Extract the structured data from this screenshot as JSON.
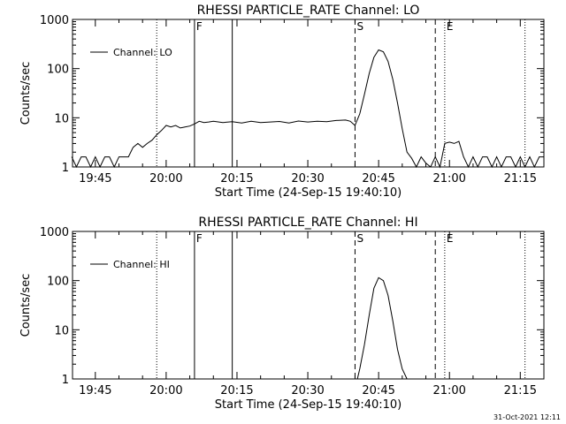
{
  "footer": {
    "timestamp": "31-Oct-2021 12:11"
  },
  "chart_data": [
    {
      "type": "line",
      "title": "RHESSI PARTICLE_RATE Channel: LO",
      "xlabel": "Start Time (24-Sep-15 19:40:10)",
      "ylabel": "Counts/sec",
      "y_scale": "log",
      "ylim": [
        1,
        1000
      ],
      "y_ticks": [
        "1",
        "10",
        "100",
        "1000"
      ],
      "xlim": [
        "19:40:10",
        "21:20:00"
      ],
      "x_ticks": [
        "19:45",
        "20:00",
        "20:15",
        "20:30",
        "20:45",
        "21:00",
        "21:15"
      ],
      "legend": {
        "position": "top-left",
        "entries": [
          "Channel: LO"
        ]
      },
      "series": [
        {
          "name": "Channel: LO",
          "x": [
            "19:40",
            "19:41",
            "19:42",
            "19:43",
            "19:44",
            "19:45",
            "19:46",
            "19:47",
            "19:48",
            "19:49",
            "19:50",
            "19:51",
            "19:52",
            "19:53",
            "19:54",
            "19:55",
            "19:56",
            "19:57",
            "19:58",
            "19:59",
            "20:00",
            "20:01",
            "20:02",
            "20:03",
            "20:04",
            "20:05",
            "20:06",
            "20:07",
            "20:08",
            "20:09",
            "20:10",
            "20:12",
            "20:14",
            "20:16",
            "20:18",
            "20:20",
            "20:22",
            "20:24",
            "20:26",
            "20:28",
            "20:30",
            "20:32",
            "20:34",
            "20:36",
            "20:38",
            "20:39",
            "20:40",
            "20:41",
            "20:42",
            "20:43",
            "20:44",
            "20:45",
            "20:46",
            "20:47",
            "20:48",
            "20:49",
            "20:50",
            "20:51",
            "20:52",
            "20:53",
            "20:54",
            "20:55",
            "20:56",
            "20:57",
            "20:58",
            "20:59",
            "21:00",
            "21:01",
            "21:02",
            "21:03",
            "21:04",
            "21:05",
            "21:06",
            "21:07",
            "21:08",
            "21:09",
            "21:10",
            "21:11",
            "21:12",
            "21:13",
            "21:14",
            "21:15",
            "21:16",
            "21:17",
            "21:18",
            "21:19",
            "21:20"
          ],
          "y": [
            1.6,
            1,
            1.6,
            1.6,
            1,
            1.6,
            1,
            1.6,
            1.6,
            1,
            1.6,
            1.6,
            1.6,
            2.5,
            3,
            2.5,
            3,
            3.5,
            4.5,
            5.5,
            7,
            6.5,
            7,
            6.2,
            6.5,
            6.8,
            7.5,
            8.5,
            8,
            8.2,
            8.5,
            8,
            8.3,
            7.8,
            8.5,
            8,
            8.2,
            8.4,
            7.8,
            8.6,
            8.2,
            8.5,
            8.3,
            8.8,
            9,
            8.5,
            7,
            12,
            30,
            80,
            170,
            240,
            220,
            140,
            60,
            20,
            6,
            2,
            1.5,
            1,
            1.6,
            1.2,
            1,
            1.6,
            1,
            3,
            3.2,
            3,
            3.3,
            1.6,
            1,
            1.6,
            1,
            1.6,
            1.6,
            1,
            1.6,
            1,
            1.6,
            1.6,
            1,
            1.6,
            1,
            1.6,
            1,
            1.6,
            1.6
          ]
        }
      ],
      "markers": [
        {
          "time": "19:58",
          "style": "dotted",
          "label": ""
        },
        {
          "time": "20:06",
          "style": "solid",
          "label": "F"
        },
        {
          "time": "20:14",
          "style": "solid",
          "label": ""
        },
        {
          "time": "20:40",
          "style": "dashed",
          "label": "S"
        },
        {
          "time": "20:57",
          "style": "dashed",
          "label": ""
        },
        {
          "time": "20:59",
          "style": "dotted",
          "label": "E"
        },
        {
          "time": "21:16",
          "style": "dotted",
          "label": ""
        }
      ]
    },
    {
      "type": "line",
      "title": "RHESSI PARTICLE_RATE Channel: HI",
      "xlabel": "Start Time (24-Sep-15 19:40:10)",
      "ylabel": "Counts/sec",
      "y_scale": "log",
      "ylim": [
        1,
        1000
      ],
      "y_ticks": [
        "1",
        "10",
        "100",
        "1000"
      ],
      "xlim": [
        "19:40:10",
        "21:20:00"
      ],
      "x_ticks": [
        "19:45",
        "20:00",
        "20:15",
        "20:30",
        "20:45",
        "21:00",
        "21:15"
      ],
      "legend": {
        "position": "top-left",
        "entries": [
          "Channel: HI"
        ]
      },
      "series": [
        {
          "name": "Channel: HI",
          "x": [
            "20:40.5",
            "20:41",
            "20:42",
            "20:43",
            "20:44",
            "20:45",
            "20:46",
            "20:47",
            "20:48",
            "20:49",
            "20:50",
            "20:51"
          ],
          "y": [
            1,
            1.6,
            5,
            20,
            70,
            115,
            100,
            50,
            15,
            4,
            1.6,
            1
          ]
        }
      ],
      "markers": [
        {
          "time": "19:58",
          "style": "dotted",
          "label": ""
        },
        {
          "time": "20:06",
          "style": "solid",
          "label": "F"
        },
        {
          "time": "20:14",
          "style": "solid",
          "label": ""
        },
        {
          "time": "20:40",
          "style": "dashed",
          "label": "S"
        },
        {
          "time": "20:57",
          "style": "dashed",
          "label": ""
        },
        {
          "time": "20:59",
          "style": "dotted",
          "label": "E"
        },
        {
          "time": "21:16",
          "style": "dotted",
          "label": ""
        }
      ]
    }
  ]
}
